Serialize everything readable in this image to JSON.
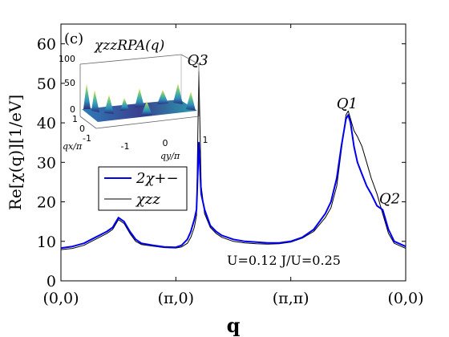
{
  "chart_data": {
    "type": "line",
    "panel_label": "(c)",
    "xlabel": "q",
    "ylabel": "Re[χ(q)][1/eV]",
    "ylim": [
      0,
      65
    ],
    "yticks": [
      0,
      10,
      20,
      30,
      40,
      50,
      60
    ],
    "xlim": [
      0,
      3
    ],
    "xticks": [
      {
        "x": 0,
        "label": "(0,0)"
      },
      {
        "x": 1,
        "label": "(π,0)"
      },
      {
        "x": 2,
        "label": "(π,π)"
      },
      {
        "x": 3,
        "label": "(0,0)"
      }
    ],
    "legend": {
      "position": "left",
      "entries": [
        "2χ+−",
        "χzz"
      ]
    },
    "annotations": [
      {
        "text": "Q3",
        "x": 1.19,
        "y": 53
      },
      {
        "text": "Q1",
        "x": 2.49,
        "y": 42
      },
      {
        "text": "Q2",
        "x": 2.86,
        "y": 18
      }
    ],
    "note": "U=0.12 J/U=0.25",
    "series": [
      {
        "name": "2χ+−",
        "color": "#0000ee",
        "x": [
          0,
          0.1,
          0.2,
          0.3,
          0.4,
          0.45,
          0.5,
          0.55,
          0.6,
          0.65,
          0.7,
          0.8,
          0.9,
          1.0,
          1.05,
          1.1,
          1.13,
          1.16,
          1.18,
          1.2,
          1.22,
          1.25,
          1.3,
          1.35,
          1.4,
          1.5,
          1.6,
          1.7,
          1.8,
          1.9,
          2.0,
          2.1,
          2.2,
          2.3,
          2.35,
          2.4,
          2.44,
          2.48,
          2.5,
          2.52,
          2.55,
          2.58,
          2.62,
          2.66,
          2.7,
          2.75,
          2.8,
          2.85,
          2.9,
          3.0
        ],
        "y": [
          8.3,
          8.7,
          9.5,
          11.0,
          12.5,
          13.5,
          16.0,
          15.0,
          12.5,
          10.5,
          9.5,
          9.0,
          8.6,
          8.5,
          9.0,
          10.5,
          12.5,
          15.5,
          18.0,
          35.0,
          22.0,
          18.0,
          14.0,
          12.5,
          11.5,
          10.5,
          10.0,
          9.8,
          9.6,
          9.6,
          10.0,
          11.0,
          13.0,
          17.0,
          20.0,
          26.0,
          34.0,
          41.0,
          42.0,
          40.0,
          34.0,
          30.0,
          27.0,
          24.0,
          22.0,
          19.0,
          18.0,
          13.0,
          10.0,
          8.7
        ]
      },
      {
        "name": "χzz",
        "color": "#000000",
        "x": [
          0,
          0.1,
          0.2,
          0.3,
          0.4,
          0.45,
          0.5,
          0.55,
          0.6,
          0.65,
          0.7,
          0.8,
          0.9,
          1.0,
          1.05,
          1.1,
          1.13,
          1.16,
          1.18,
          1.2,
          1.22,
          1.25,
          1.3,
          1.35,
          1.4,
          1.5,
          1.6,
          1.7,
          1.8,
          1.9,
          2.0,
          2.1,
          2.2,
          2.3,
          2.35,
          2.4,
          2.44,
          2.48,
          2.5,
          2.52,
          2.55,
          2.58,
          2.62,
          2.66,
          2.7,
          2.75,
          2.8,
          2.85,
          2.9,
          3.0
        ],
        "y": [
          7.9,
          8.2,
          9.0,
          10.5,
          12.0,
          13.0,
          15.5,
          14.5,
          12.0,
          10.0,
          9.2,
          8.8,
          8.4,
          8.3,
          8.6,
          9.5,
          11.0,
          13.5,
          16.5,
          53.0,
          24.0,
          17.0,
          13.5,
          12.0,
          11.0,
          10.0,
          9.6,
          9.4,
          9.3,
          9.4,
          9.8,
          10.8,
          12.5,
          16.0,
          18.5,
          24.0,
          33.0,
          42.0,
          43.0,
          41.0,
          38.0,
          36.5,
          34.0,
          30.0,
          26.0,
          22.0,
          17.0,
          12.0,
          9.5,
          8.2
        ]
      }
    ],
    "inset": {
      "title": "χzzRPA(q)",
      "zticks": [
        "0",
        "50",
        "100"
      ],
      "xaxis_label": "qx/π",
      "xticks": [
        "-1",
        "0",
        "1"
      ],
      "yaxis_label": "qy/π",
      "yticks": [
        "-1",
        "0",
        "1"
      ]
    }
  }
}
